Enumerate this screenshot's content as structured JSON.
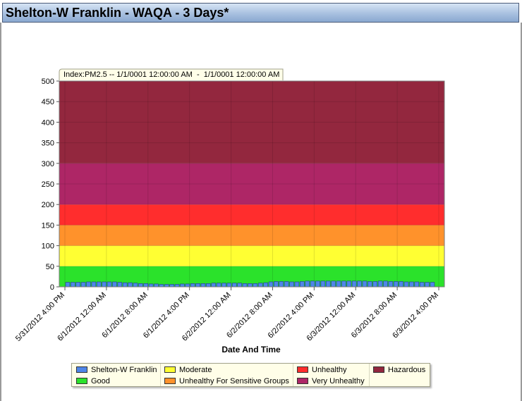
{
  "window": {
    "title": "Shelton-W Franklin - WAQA - 3 Days*"
  },
  "chart_data": {
    "type": "bar",
    "title": "Index:PM2.5 -- 1/1/0001 12:00:00 AM  -  1/1/0001 12:00:00 AM",
    "xlabel": "Date And Time",
    "ylabel": "",
    "ylim": [
      0,
      500
    ],
    "yticks": [
      0,
      50,
      100,
      150,
      200,
      250,
      300,
      350,
      400,
      450,
      500
    ],
    "xticks": [
      "5/31/2012 4:00 PM",
      "6/1/2012 12:00 AM",
      "6/1/2012 8:00 AM",
      "6/1/2012 4:00 PM",
      "6/2/2012 12:00 AM",
      "6/2/2012 8:00 AM",
      "6/2/2012 4:00 PM",
      "6/3/2012 12:00 AM",
      "6/3/2012 8:00 AM",
      "6/3/2012 4:00 PM"
    ],
    "grid": true,
    "legend_position": "bottom",
    "bands": [
      {
        "name": "Good",
        "from": 0,
        "to": 50,
        "color": "#2be22b"
      },
      {
        "name": "Moderate",
        "from": 50,
        "to": 100,
        "color": "#ffff33"
      },
      {
        "name": "Unhealthy For Sensitive Groups",
        "from": 100,
        "to": 150,
        "color": "#ff922b"
      },
      {
        "name": "Unhealthy",
        "from": 150,
        "to": 200,
        "color": "#ff2d2d"
      },
      {
        "name": "Very Unhealthy",
        "from": 200,
        "to": 300,
        "color": "#ae2666"
      },
      {
        "name": "Hazardous",
        "from": 300,
        "to": 500,
        "color": "#93273e"
      }
    ],
    "series": [
      {
        "name": "Shelton-W Franklin",
        "color": "#4f86e8",
        "values": [
          11,
          11,
          11,
          11,
          12,
          12,
          12,
          12,
          12,
          12,
          11,
          10,
          10,
          9,
          8,
          8,
          7,
          7,
          6,
          6,
          6,
          6,
          7,
          7,
          8,
          8,
          8,
          8,
          9,
          9,
          9,
          9,
          9,
          9,
          8,
          8,
          8,
          9,
          10,
          12,
          13,
          13,
          13,
          12,
          12,
          13,
          14,
          14,
          14,
          14,
          14,
          14,
          14,
          14,
          14,
          14,
          14,
          14,
          13,
          13,
          14,
          14,
          13,
          13,
          13,
          12,
          12,
          12,
          11,
          11,
          11
        ]
      }
    ]
  },
  "legend": {
    "items": [
      {
        "label": "Shelton-W Franklin",
        "color": "#4f86e8"
      },
      {
        "label": "Good",
        "color": "#2be22b"
      },
      {
        "label": "Moderate",
        "color": "#ffff33"
      },
      {
        "label": "Unhealthy For Sensitive Groups",
        "color": "#ff922b"
      },
      {
        "label": "Unhealthy",
        "color": "#ff2d2d"
      },
      {
        "label": "Very Unhealthy",
        "color": "#ae2666"
      },
      {
        "label": "Hazardous",
        "color": "#93273e"
      }
    ]
  }
}
